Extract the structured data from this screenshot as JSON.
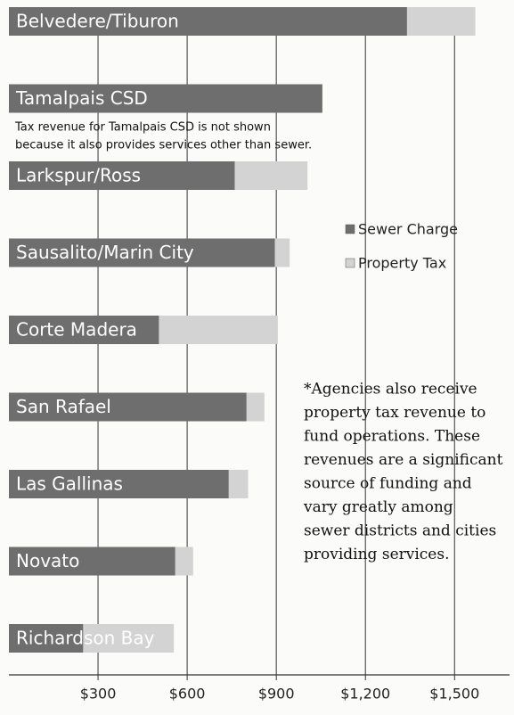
{
  "chart_data": {
    "type": "stacked-barh",
    "categories": [
      "Belvedere/Tiburon",
      "Tamalpais CSD",
      "Larkspur/Ross",
      "Sausalito/Marin City",
      "Corte Madera",
      "San Rafael",
      "Las Gallinas",
      "Novato",
      "Richardson Bay"
    ],
    "series": [
      {
        "name": "Sewer Charge",
        "color": "#6e6e6e",
        "values": [
          1340,
          1055,
          760,
          895,
          505,
          800,
          740,
          560,
          250
        ]
      },
      {
        "name": "Property Tax",
        "color": "#d3d3d3",
        "values": [
          230,
          0,
          245,
          50,
          400,
          60,
          65,
          60,
          305
        ]
      }
    ],
    "xlim": [
      0,
      1700
    ],
    "xticks": [
      {
        "value": 300,
        "label": "$300"
      },
      {
        "value": 600,
        "label": "$600"
      },
      {
        "value": 900,
        "label": "$900"
      },
      {
        "value": 1200,
        "label": "$1,200"
      },
      {
        "value": 1500,
        "label": "$1,500"
      }
    ],
    "grid": true,
    "legend": "right",
    "note_lines": [
      "Tax revenue for Tamalpais CSD is not shown",
      "because it also provides services other than sewer."
    ],
    "footnote_lines": [
      "*Agencies also receive",
      "property tax revenue to",
      "fund operations. These",
      "revenues are a significant",
      "source of funding and",
      "vary greatly among",
      "sewer districts and cities",
      "providing services."
    ]
  }
}
